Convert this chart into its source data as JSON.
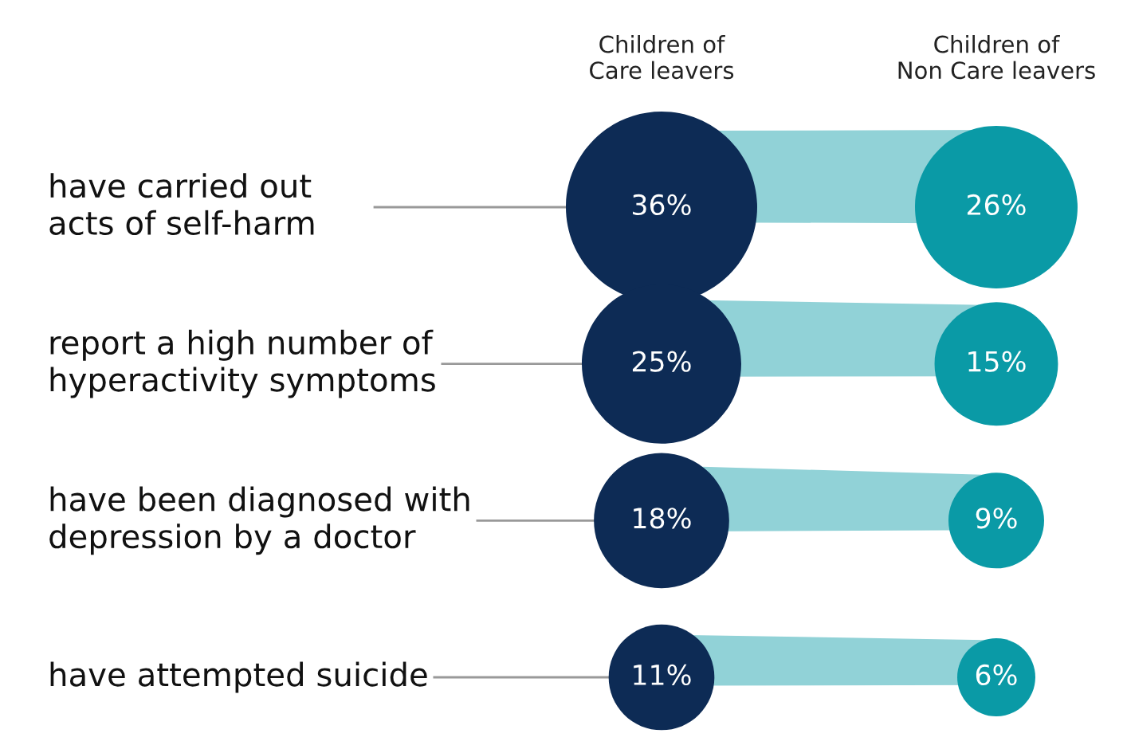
{
  "chart_data": {
    "type": "other",
    "categories": [
      "have carried out\nacts of self-harm",
      "report a high number of\nhyperactivity symptoms",
      "have been diagnosed with\ndepression by a doctor",
      "have attempted suicide"
    ],
    "series": [
      {
        "name": "Children of\nCare leavers",
        "color": "#0d2b55",
        "values": [
          36,
          25,
          18,
          11
        ],
        "value_labels": [
          "36%",
          "25%",
          "18%",
          "11%"
        ]
      },
      {
        "name": "Children of\nNon Care leavers",
        "color": "#0a9aa6",
        "values": [
          26,
          15,
          9,
          6
        ],
        "value_labels": [
          "26%",
          "15%",
          "9%",
          "6%"
        ]
      }
    ]
  }
}
